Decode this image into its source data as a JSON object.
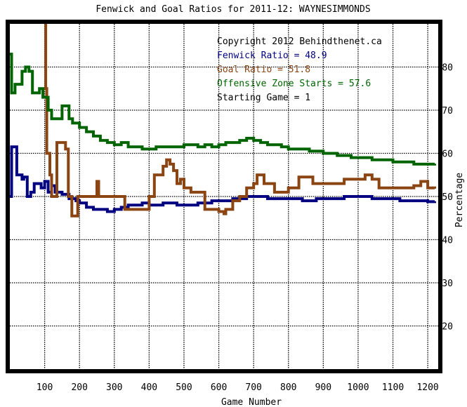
{
  "chart_data": {
    "type": "line",
    "title": "Fenwick and Goal Ratios for 2011-12: WAYNESIMMONDS",
    "xlabel": "Game Number",
    "ylabel": "Percentage",
    "xlim": [
      0,
      1230
    ],
    "ylim": [
      10,
      90
    ],
    "x_ticks": [
      100,
      200,
      300,
      400,
      500,
      600,
      700,
      800,
      900,
      1000,
      1100,
      1200
    ],
    "y_ticks": [
      20,
      30,
      40,
      50,
      60,
      70,
      80
    ],
    "grid": true,
    "annotations": [
      {
        "text": "Copyright 2012 Behindthenet.ca",
        "color": "#000000"
      },
      {
        "text": "Fenwick Ratio = 48.9",
        "color": "#000080"
      },
      {
        "text": "Goal Ratio = 51.8",
        "color": "#8b4513"
      },
      {
        "text": "Offensive Zone Starts = 57.6",
        "color": "#006400"
      },
      {
        "text": "Starting Game = 1",
        "color": "#000000"
      }
    ],
    "series": [
      {
        "name": "Fenwick Ratio",
        "color": "#000080",
        "points": [
          [
            0,
            50
          ],
          [
            5,
            61.5
          ],
          [
            15,
            61.5
          ],
          [
            20,
            55
          ],
          [
            28,
            55
          ],
          [
            35,
            54
          ],
          [
            40,
            54.5
          ],
          [
            50,
            50
          ],
          [
            60,
            51
          ],
          [
            70,
            53
          ],
          [
            80,
            53
          ],
          [
            90,
            52
          ],
          [
            100,
            53.5
          ],
          [
            110,
            51
          ],
          [
            120,
            52.5
          ],
          [
            130,
            51
          ],
          [
            140,
            51
          ],
          [
            150,
            50.5
          ],
          [
            170,
            49.5
          ],
          [
            190,
            49
          ],
          [
            200,
            48.5
          ],
          [
            220,
            47.5
          ],
          [
            240,
            47
          ],
          [
            260,
            47
          ],
          [
            280,
            46.5
          ],
          [
            300,
            47
          ],
          [
            320,
            47.5
          ],
          [
            340,
            48
          ],
          [
            360,
            48
          ],
          [
            380,
            48.5
          ],
          [
            400,
            48
          ],
          [
            420,
            48
          ],
          [
            440,
            48.5
          ],
          [
            460,
            48.5
          ],
          [
            480,
            48
          ],
          [
            500,
            48
          ],
          [
            520,
            48
          ],
          [
            540,
            48.5
          ],
          [
            560,
            48.5
          ],
          [
            580,
            49
          ],
          [
            600,
            49
          ],
          [
            620,
            49
          ],
          [
            640,
            49.5
          ],
          [
            660,
            49.5
          ],
          [
            680,
            50
          ],
          [
            700,
            50
          ],
          [
            720,
            50
          ],
          [
            740,
            49.5
          ],
          [
            760,
            49.5
          ],
          [
            780,
            49.5
          ],
          [
            800,
            49.5
          ],
          [
            820,
            49.5
          ],
          [
            840,
            49
          ],
          [
            860,
            49
          ],
          [
            880,
            49.5
          ],
          [
            900,
            49.5
          ],
          [
            920,
            49.5
          ],
          [
            940,
            49.5
          ],
          [
            960,
            50
          ],
          [
            980,
            50
          ],
          [
            1000,
            50
          ],
          [
            1020,
            50
          ],
          [
            1040,
            49.5
          ],
          [
            1060,
            49.5
          ],
          [
            1080,
            49.5
          ],
          [
            1100,
            49.5
          ],
          [
            1120,
            49
          ],
          [
            1140,
            49
          ],
          [
            1160,
            49
          ],
          [
            1180,
            49
          ],
          [
            1200,
            48.8
          ],
          [
            1220,
            48.9
          ]
        ]
      },
      {
        "name": "Goal Ratio",
        "color": "#8b4513",
        "points": [
          [
            100,
            90
          ],
          [
            103,
            75
          ],
          [
            106,
            60
          ],
          [
            110,
            60
          ],
          [
            115,
            55
          ],
          [
            120,
            50
          ],
          [
            130,
            50
          ],
          [
            135,
            62.5
          ],
          [
            145,
            62.5
          ],
          [
            160,
            61
          ],
          [
            168,
            50
          ],
          [
            178,
            45.5
          ],
          [
            190,
            45.5
          ],
          [
            195,
            50
          ],
          [
            205,
            50
          ],
          [
            220,
            50
          ],
          [
            240,
            50
          ],
          [
            250,
            53.5
          ],
          [
            255,
            50
          ],
          [
            280,
            50
          ],
          [
            300,
            50
          ],
          [
            320,
            50
          ],
          [
            330,
            47
          ],
          [
            350,
            47
          ],
          [
            370,
            47
          ],
          [
            390,
            47
          ],
          [
            400,
            50
          ],
          [
            410,
            50
          ],
          [
            415,
            55
          ],
          [
            430,
            55
          ],
          [
            440,
            57
          ],
          [
            450,
            58.5
          ],
          [
            460,
            57.5
          ],
          [
            470,
            56
          ],
          [
            480,
            53
          ],
          [
            490,
            54
          ],
          [
            500,
            52
          ],
          [
            510,
            52
          ],
          [
            520,
            51
          ],
          [
            530,
            51
          ],
          [
            540,
            51
          ],
          [
            560,
            47
          ],
          [
            580,
            47
          ],
          [
            600,
            46.5
          ],
          [
            615,
            46
          ],
          [
            620,
            47
          ],
          [
            640,
            49
          ],
          [
            660,
            50
          ],
          [
            680,
            52
          ],
          [
            700,
            53
          ],
          [
            710,
            55
          ],
          [
            730,
            53
          ],
          [
            740,
            53
          ],
          [
            760,
            51
          ],
          [
            780,
            51
          ],
          [
            800,
            52
          ],
          [
            820,
            52
          ],
          [
            830,
            54.5
          ],
          [
            850,
            54.5
          ],
          [
            870,
            53
          ],
          [
            900,
            53
          ],
          [
            920,
            53
          ],
          [
            940,
            53
          ],
          [
            960,
            54
          ],
          [
            980,
            54
          ],
          [
            1000,
            54
          ],
          [
            1020,
            55
          ],
          [
            1040,
            54
          ],
          [
            1060,
            52
          ],
          [
            1080,
            52
          ],
          [
            1100,
            52
          ],
          [
            1120,
            52
          ],
          [
            1140,
            52
          ],
          [
            1160,
            52.5
          ],
          [
            1180,
            53.5
          ],
          [
            1200,
            52
          ],
          [
            1220,
            51.8
          ]
        ]
      },
      {
        "name": "Offensive Zone Starts",
        "color": "#006400",
        "points": [
          [
            0,
            83
          ],
          [
            5,
            74
          ],
          [
            15,
            76
          ],
          [
            25,
            76
          ],
          [
            35,
            79
          ],
          [
            45,
            80
          ],
          [
            55,
            79
          ],
          [
            65,
            74
          ],
          [
            75,
            74
          ],
          [
            85,
            75
          ],
          [
            95,
            73
          ],
          [
            105,
            73
          ],
          [
            110,
            70
          ],
          [
            120,
            68
          ],
          [
            135,
            68
          ],
          [
            150,
            71
          ],
          [
            160,
            71
          ],
          [
            170,
            68
          ],
          [
            180,
            67
          ],
          [
            200,
            66
          ],
          [
            220,
            65
          ],
          [
            240,
            64
          ],
          [
            260,
            63
          ],
          [
            280,
            62.5
          ],
          [
            300,
            62
          ],
          [
            320,
            62.5
          ],
          [
            340,
            61.5
          ],
          [
            360,
            61.5
          ],
          [
            380,
            61
          ],
          [
            400,
            61
          ],
          [
            420,
            61.5
          ],
          [
            440,
            61.5
          ],
          [
            460,
            61.5
          ],
          [
            480,
            61.5
          ],
          [
            500,
            62
          ],
          [
            520,
            62
          ],
          [
            540,
            61.5
          ],
          [
            560,
            62
          ],
          [
            580,
            61.5
          ],
          [
            600,
            62
          ],
          [
            620,
            62.5
          ],
          [
            640,
            62.5
          ],
          [
            660,
            63
          ],
          [
            680,
            63.5
          ],
          [
            700,
            63
          ],
          [
            720,
            62.5
          ],
          [
            740,
            62
          ],
          [
            760,
            62
          ],
          [
            780,
            61.5
          ],
          [
            800,
            61
          ],
          [
            820,
            61
          ],
          [
            840,
            61
          ],
          [
            860,
            60.5
          ],
          [
            880,
            60.5
          ],
          [
            900,
            60
          ],
          [
            920,
            60
          ],
          [
            940,
            59.5
          ],
          [
            960,
            59.5
          ],
          [
            980,
            59
          ],
          [
            1000,
            59
          ],
          [
            1020,
            59
          ],
          [
            1040,
            58.5
          ],
          [
            1060,
            58.5
          ],
          [
            1080,
            58.5
          ],
          [
            1100,
            58
          ],
          [
            1120,
            58
          ],
          [
            1140,
            58
          ],
          [
            1160,
            57.5
          ],
          [
            1180,
            57.5
          ],
          [
            1200,
            57.5
          ],
          [
            1220,
            57.6
          ]
        ]
      }
    ]
  }
}
